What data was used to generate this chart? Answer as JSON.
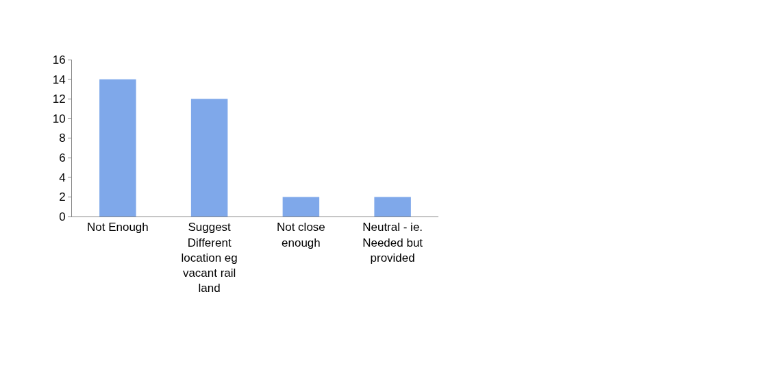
{
  "chart_data": {
    "type": "bar",
    "categories": [
      "Not Enough",
      "Suggest Different location eg vacant rail land",
      "Not close enough",
      "Neutral - ie. Needed but provided"
    ],
    "values": [
      14,
      12,
      2,
      2
    ],
    "color": "#7fa8ea",
    "ylim": [
      0,
      16
    ],
    "yticks": [
      0,
      2,
      4,
      6,
      8,
      10,
      12,
      14,
      16
    ],
    "grid": false,
    "legend": false
  }
}
